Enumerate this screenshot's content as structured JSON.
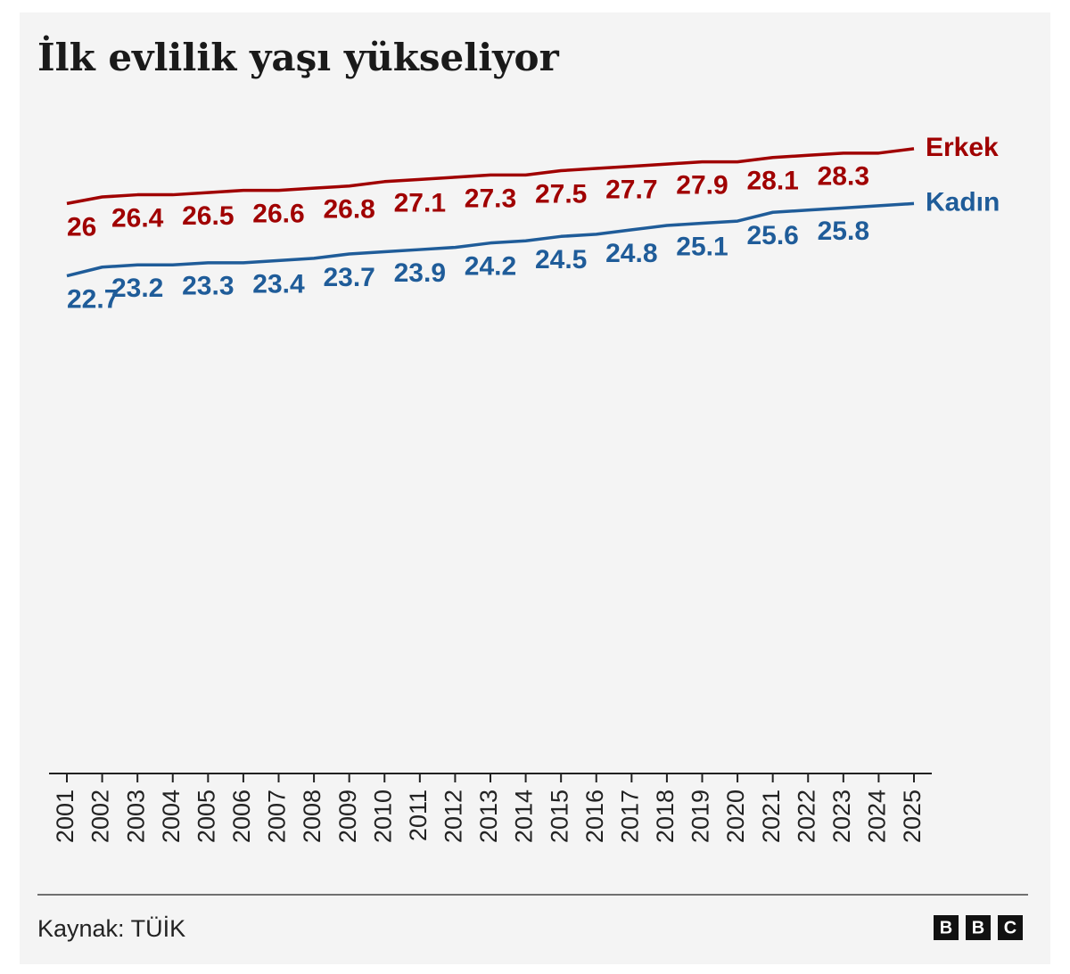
{
  "chart_data": {
    "type": "line",
    "title": "İlk evlilik yaşı yükseliyor",
    "source": "Kaynak: TÜİK",
    "logo": [
      "B",
      "B",
      "C"
    ],
    "categories": [
      "2001",
      "2002",
      "2003",
      "2004",
      "2005",
      "2006",
      "2007",
      "2008",
      "2009",
      "2010",
      "2011",
      "2012",
      "2013",
      "2014",
      "2015",
      "2016",
      "2017",
      "2018",
      "2019",
      "2020",
      "2021",
      "2022",
      "2023",
      "2024",
      "2025"
    ],
    "ylim": [
      0,
      30
    ],
    "series": [
      {
        "name": "Erkek",
        "color": "#a00000",
        "values": [
          26,
          26.3,
          26.4,
          26.4,
          26.5,
          26.6,
          26.6,
          26.7,
          26.8,
          27.0,
          27.1,
          27.2,
          27.3,
          27.3,
          27.5,
          27.6,
          27.7,
          27.8,
          27.9,
          27.9,
          28.1,
          28.2,
          28.3,
          28.3,
          28.5
        ],
        "value_labels": [
          "26",
          null,
          "26.4",
          null,
          "26.5",
          null,
          "26.6",
          null,
          "26.8",
          null,
          "27.1",
          null,
          "27.3",
          null,
          "27.5",
          null,
          "27.7",
          null,
          "27.9",
          null,
          "28.1",
          null,
          "28.3",
          null,
          null
        ]
      },
      {
        "name": "Kadın",
        "color": "#1f5c99",
        "values": [
          22.7,
          23.1,
          23.2,
          23.2,
          23.3,
          23.3,
          23.4,
          23.5,
          23.7,
          23.8,
          23.9,
          24.0,
          24.2,
          24.3,
          24.5,
          24.6,
          24.8,
          25.0,
          25.1,
          25.2,
          25.6,
          25.7,
          25.8,
          25.9,
          26.0
        ],
        "value_labels": [
          "22.7",
          null,
          "23.2",
          null,
          "23.3",
          null,
          "23.4",
          null,
          "23.7",
          null,
          "23.9",
          null,
          "24.2",
          null,
          "24.5",
          null,
          "24.8",
          null,
          "25.1",
          null,
          "25.6",
          null,
          "25.8",
          null,
          null
        ]
      }
    ]
  }
}
